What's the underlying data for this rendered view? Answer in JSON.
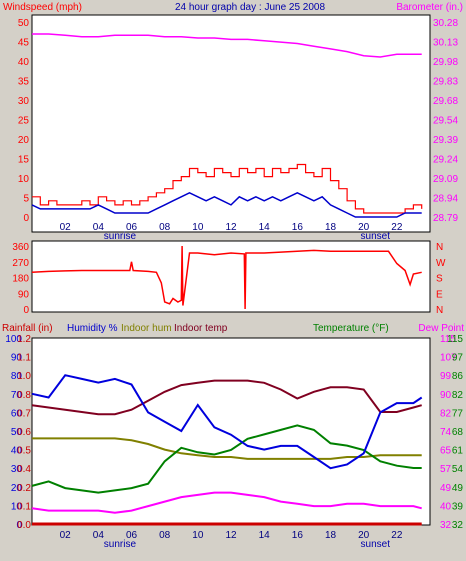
{
  "header": {
    "left_label": "Windspeed (mph)",
    "title": "24 hour graph day : June 25 2008",
    "right_label": "Barometer (in.)"
  },
  "bottom_header": {
    "rainfall": "Rainfall (in)",
    "humidity": "Humidity %",
    "indoor_hum": "Indoor hum",
    "indoor_temp": "Indoor temp",
    "temperature": "Temperature (°F)",
    "dew_point": "Dew Point"
  },
  "x_axis": {
    "ticks": [
      "02",
      "04",
      "06",
      "08",
      "10",
      "12",
      "14",
      "16",
      "18",
      "20",
      "22"
    ],
    "sunrise_label": "sunrise",
    "sunset_label": "sunset",
    "sunrise_hour": 5.3,
    "sunset_hour": 20.7
  },
  "colors": {
    "gust": "#ff0000",
    "wind": "#0000cc",
    "barometer": "#ff00ff",
    "direction": "#ff0000",
    "humidity": "#0000dd",
    "indoor_hum": "#808000",
    "indoor_temp": "#800020",
    "temperature": "#008000",
    "dew_point": "#ff00ff",
    "rainfall": "#cc0000",
    "background": "#ffffff",
    "frame": "#d4d0c8"
  },
  "chart_data": [
    {
      "type": "line",
      "panel": "wind",
      "x_range_hours": [
        0,
        24
      ],
      "left_axis": {
        "ticks": [
          "50",
          "45",
          "40",
          "35",
          "30",
          "25",
          "20",
          "15",
          "10",
          "5",
          "0"
        ],
        "ylim": [
          0,
          50
        ]
      },
      "right_axis": {
        "ticks": [
          "30.28",
          "30.13",
          "29.98",
          "29.83",
          "29.68",
          "29.54",
          "29.39",
          "29.24",
          "29.09",
          "28.94",
          "28.79"
        ],
        "ylim": [
          28.79,
          30.28
        ]
      },
      "series": [
        {
          "name": "Gust",
          "axis": "left",
          "x": [
            0,
            0.5,
            1,
            1.5,
            2,
            2.5,
            3,
            3.5,
            4,
            4.5,
            5,
            5.5,
            6,
            6.5,
            7,
            7.5,
            8,
            8.5,
            9,
            9.5,
            10,
            10.5,
            11,
            11.5,
            12,
            12.5,
            13,
            13.5,
            14,
            14.5,
            15,
            15.5,
            16,
            16.5,
            17,
            17.5,
            18,
            18.5,
            19,
            19.5,
            20,
            20.5,
            21,
            21.5,
            22,
            22.5,
            23,
            23.5
          ],
          "y": [
            5,
            3,
            4,
            3,
            3,
            3,
            4,
            3,
            5,
            4,
            3,
            4,
            3,
            4,
            5,
            6,
            7,
            9,
            10,
            12,
            11,
            10,
            12,
            11,
            10,
            12,
            11,
            12,
            10,
            12,
            11,
            12,
            13,
            11,
            10,
            12,
            9,
            7,
            4,
            2,
            1,
            1,
            1,
            1,
            1,
            2,
            3,
            2
          ]
        },
        {
          "name": "Wind",
          "axis": "left",
          "x": [
            0,
            0.5,
            1,
            1.5,
            2,
            2.5,
            3,
            3.5,
            4,
            4.5,
            5,
            5.5,
            6,
            6.5,
            7,
            7.5,
            8,
            8.5,
            9,
            9.5,
            10,
            10.5,
            11,
            11.5,
            12,
            12.5,
            13,
            13.5,
            14,
            14.5,
            15,
            15.5,
            16,
            16.5,
            17,
            17.5,
            18,
            18.5,
            19,
            19.5,
            20,
            20.5,
            21,
            21.5,
            22,
            22.5,
            23,
            23.5
          ],
          "y": [
            3,
            2,
            2,
            2,
            2,
            2,
            2,
            2,
            3,
            2,
            1,
            1,
            1,
            1,
            1,
            2,
            3,
            4,
            5,
            6,
            5,
            4,
            5,
            4,
            3,
            5,
            4,
            5,
            4,
            5,
            4,
            5,
            6,
            5,
            4,
            5,
            3,
            2,
            1,
            0,
            0,
            0,
            0,
            0,
            0,
            1,
            1,
            1
          ]
        },
        {
          "name": "Barometer",
          "axis": "right",
          "x": [
            0,
            1,
            2,
            3,
            4,
            5,
            6,
            7,
            8,
            9,
            10,
            11,
            12,
            13,
            14,
            15,
            16,
            17,
            18,
            19,
            20,
            21,
            22,
            23,
            23.5
          ],
          "y": [
            30.14,
            30.14,
            30.13,
            30.12,
            30.12,
            30.13,
            30.13,
            30.13,
            30.12,
            30.12,
            30.11,
            30.11,
            30.1,
            30.1,
            30.09,
            30.08,
            30.07,
            30.05,
            30.03,
            30.01,
            29.98,
            29.97,
            29.99,
            29.99,
            29.99
          ]
        }
      ]
    },
    {
      "type": "line",
      "panel": "direction",
      "x_range_hours": [
        0,
        24
      ],
      "left_axis": {
        "ticks": [
          "360",
          "270",
          "180",
          "90",
          "0"
        ],
        "ylim": [
          0,
          360
        ]
      },
      "right_axis": {
        "ticks": [
          "N",
          "W",
          "S",
          "E",
          "N"
        ]
      },
      "series": [
        {
          "name": "Direction",
          "axis": "left",
          "x": [
            0,
            1,
            2,
            3,
            4,
            5,
            5.9,
            6,
            6.1,
            7,
            7.5,
            7.8,
            8,
            8.3,
            8.5,
            8.8,
            9,
            9.05,
            9.1,
            9.5,
            10,
            11,
            12,
            12.8,
            12.85,
            12.9,
            13,
            14,
            15,
            16,
            17,
            18,
            19,
            20,
            21,
            21.5,
            22,
            22.5,
            22.8,
            23,
            23.5
          ],
          "y": [
            210,
            215,
            218,
            220,
            220,
            220,
            220,
            270,
            220,
            215,
            210,
            150,
            40,
            30,
            60,
            40,
            50,
            360,
            20,
            320,
            320,
            310,
            320,
            315,
            0,
            320,
            320,
            320,
            325,
            330,
            335,
            330,
            330,
            330,
            330,
            330,
            260,
            220,
            140,
            200,
            210
          ]
        }
      ]
    },
    {
      "type": "line",
      "panel": "temperature_humidity",
      "x_range_hours": [
        0,
        24
      ],
      "left_axis": {
        "humidity_ticks": [
          "100",
          "90",
          "80",
          "70",
          "60",
          "50",
          "40",
          "30",
          "20",
          "10",
          "0"
        ],
        "rainfall_ticks": [
          "1.2",
          "1.1",
          "1.0",
          "0.8",
          "0.7",
          "0.6",
          "0.5",
          "0.4",
          "0.2",
          "0.1",
          "0.0"
        ],
        "humidity_ylim": [
          0,
          100
        ]
      },
      "right_axis": {
        "dew_point_ticks": [
          "115",
          "107",
          "99",
          "90",
          "82",
          "74",
          "65",
          "57",
          "49",
          "40",
          "32"
        ],
        "temperature_ticks": [
          "115",
          "97",
          "86",
          "82",
          "77",
          "68",
          "61",
          "54",
          "49",
          "39",
          "32"
        ],
        "temperature_ylim": [
          32,
          115
        ]
      },
      "series": [
        {
          "name": "Humidity",
          "axis": "humidity",
          "x": [
            0,
            1,
            2,
            3,
            4,
            5,
            6,
            7,
            8,
            9,
            10,
            11,
            12,
            13,
            14,
            15,
            16,
            17,
            18,
            19,
            20,
            21,
            22,
            23,
            23.5
          ],
          "y": [
            70,
            68,
            80,
            78,
            76,
            78,
            75,
            60,
            55,
            50,
            64,
            52,
            48,
            42,
            40,
            42,
            42,
            36,
            30,
            32,
            38,
            60,
            65,
            65,
            68
          ]
        },
        {
          "name": "Indoor hum",
          "axis": "humidity",
          "x": [
            0,
            1,
            2,
            3,
            4,
            5,
            6,
            7,
            8,
            9,
            10,
            11,
            12,
            13,
            14,
            15,
            16,
            17,
            18,
            19,
            20,
            21,
            22,
            23,
            23.5
          ],
          "y": [
            46,
            46,
            46,
            46,
            46,
            46,
            45,
            43,
            40,
            38,
            37,
            36,
            36,
            35,
            35,
            35,
            35,
            35,
            35,
            36,
            36,
            37,
            37,
            37,
            37
          ]
        },
        {
          "name": "Indoor temp",
          "axis": "temperature",
          "x": [
            0,
            1,
            2,
            3,
            4,
            5,
            6,
            7,
            8,
            9,
            10,
            11,
            12,
            13,
            14,
            15,
            16,
            17,
            18,
            19,
            20,
            21,
            22,
            23,
            23.5
          ],
          "y": [
            85,
            84,
            83,
            82,
            81,
            81,
            83,
            87,
            91,
            94,
            95,
            96,
            96,
            96,
            95,
            92,
            88,
            91,
            93,
            93,
            92,
            82,
            82,
            84,
            85
          ]
        },
        {
          "name": "Temperature",
          "axis": "temperature",
          "x": [
            0,
            1,
            2,
            3,
            4,
            5,
            6,
            7,
            8,
            9,
            10,
            11,
            12,
            13,
            14,
            15,
            16,
            17,
            18,
            19,
            20,
            21,
            22,
            23,
            23.5
          ],
          "y": [
            49,
            51,
            48,
            47,
            46,
            47,
            48,
            50,
            60,
            66,
            64,
            63,
            65,
            70,
            72,
            74,
            76,
            74,
            68,
            67,
            65,
            60,
            58,
            57,
            57
          ]
        },
        {
          "name": "Dew Point",
          "axis": "temperature",
          "x": [
            0,
            1,
            2,
            3,
            4,
            5,
            6,
            7,
            8,
            9,
            10,
            11,
            12,
            13,
            14,
            15,
            16,
            17,
            18,
            19,
            20,
            21,
            22,
            23,
            23.5
          ],
          "y": [
            39,
            38,
            38,
            38,
            38,
            37,
            38,
            40,
            42,
            44,
            45,
            46,
            46,
            45,
            44,
            42,
            41,
            40,
            40,
            41,
            41,
            40,
            40,
            40,
            39
          ]
        },
        {
          "name": "Rainfall",
          "axis": "rainfall",
          "x": [
            0,
            23.5
          ],
          "y": [
            0,
            0
          ]
        }
      ]
    }
  ]
}
